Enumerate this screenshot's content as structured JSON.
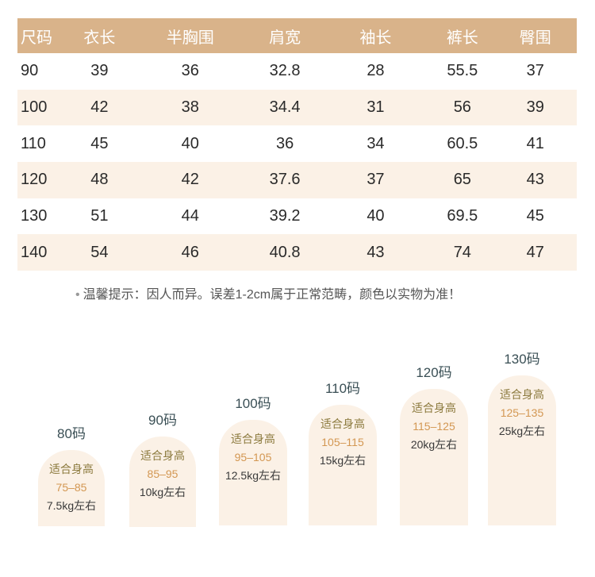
{
  "table": {
    "headers": [
      "尺码",
      "衣长",
      "半胸围",
      "肩宽",
      "袖长",
      "裤长",
      "臀围"
    ],
    "rows": [
      [
        "90",
        "39",
        "36",
        "32.8",
        "28",
        "55.5",
        "37"
      ],
      [
        "100",
        "42",
        "38",
        "34.4",
        "31",
        "56",
        "39"
      ],
      [
        "110",
        "45",
        "40",
        "36",
        "34",
        "60.5",
        "41"
      ],
      [
        "120",
        "48",
        "42",
        "37.6",
        "37",
        "65",
        "43"
      ],
      [
        "130",
        "51",
        "44",
        "39.2",
        "40",
        "69.5",
        "45"
      ],
      [
        "140",
        "54",
        "46",
        "40.8",
        "43",
        "74",
        "47"
      ]
    ]
  },
  "tip": {
    "bullet": "•",
    "text": "温馨提示：因人而异。误差1-2cm属于正常范畴，颜色以实物为准！"
  },
  "cards": [
    {
      "size": "80码",
      "label": "适合身高",
      "height": "75–85",
      "weight": "7.5kg左右"
    },
    {
      "size": "90码",
      "label": "适合身高",
      "height": "85–95",
      "weight": "10kg左右"
    },
    {
      "size": "100码",
      "label": "适合身高",
      "height": "95–105",
      "weight": "12.5kg左右"
    },
    {
      "size": "110码",
      "label": "适合身高",
      "height": "105–115",
      "weight": "15kg左右"
    },
    {
      "size": "120码",
      "label": "适合身高",
      "height": "115–125",
      "weight": "20kg左右"
    },
    {
      "size": "130码",
      "label": "适合身高",
      "height": "125–135",
      "weight": "25kg左右"
    }
  ],
  "colors": {
    "header_bg": "#d9b38a",
    "stripe_bg": "#fbf1e6",
    "accent": "#d39752"
  }
}
